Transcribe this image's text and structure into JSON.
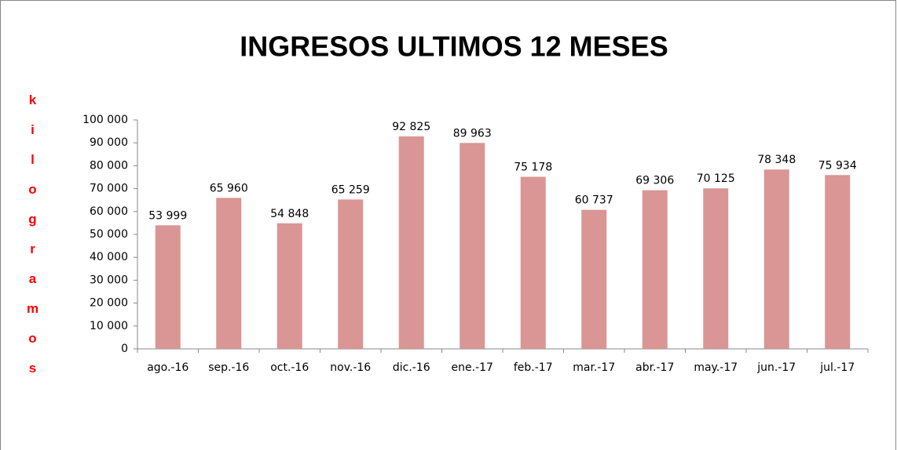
{
  "chart_data": {
    "type": "bar",
    "title": "INGRESOS ULTIMOS 12 MESES",
    "y_label": "kilogramos",
    "categories": [
      "ago.-16",
      "sep.-16",
      "oct.-16",
      "nov.-16",
      "dic.-16",
      "ene.-17",
      "feb.-17",
      "mar.-17",
      "abr.-17",
      "may.-17",
      "jun.-17",
      "jul.-17"
    ],
    "values": [
      53999,
      65960,
      54848,
      65259,
      92825,
      89963,
      75178,
      60737,
      69306,
      70125,
      78348,
      75934
    ],
    "value_labels": [
      "53 999",
      "65 960",
      "54 848",
      "65 259",
      "92 825",
      "89 963",
      "75 178",
      "60 737",
      "69 306",
      "70 125",
      "78 348",
      "75 934"
    ],
    "color": "#d99694",
    "ylim": [
      0,
      100000
    ],
    "yticks": [
      0,
      {
        "value": 10000,
        "label": "10 000"
      },
      {
        "value": 20000,
        "label": "20 000"
      },
      {
        "value": 30000,
        "label": "30 000"
      },
      {
        "value": 40000,
        "label": "40 000"
      },
      {
        "value": 50000,
        "label": "50 000"
      },
      {
        "value": 60000,
        "label": "60 000"
      },
      {
        "value": 70000,
        "label": "70 000"
      },
      {
        "value": 80000,
        "label": "80 000"
      },
      {
        "value": 90000,
        "label": "90 000"
      },
      {
        "value": 100000,
        "label": "100 000"
      }
    ],
    "grid": false
  }
}
